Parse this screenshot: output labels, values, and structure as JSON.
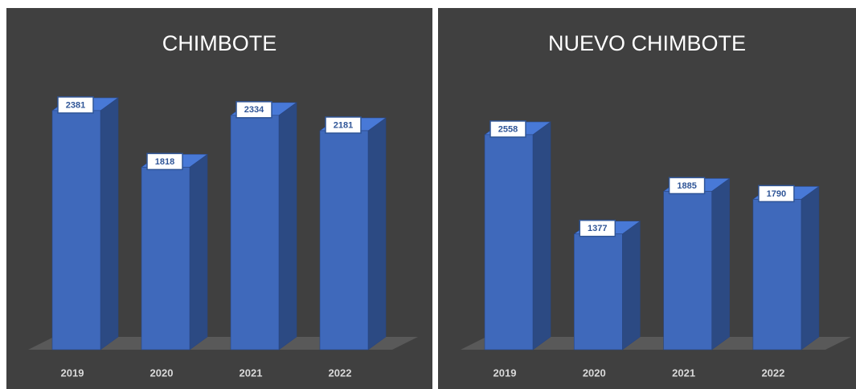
{
  "chart_data": [
    {
      "type": "bar3d",
      "title": "CHIMBOTE",
      "categories": [
        "2019",
        "2020",
        "2021",
        "2022"
      ],
      "values": [
        2381,
        1818,
        2334,
        2181
      ],
      "color": "#3f69bb"
    },
    {
      "type": "bar3d",
      "title": "NUEVO CHIMBOTE",
      "categories": [
        "2019",
        "2020",
        "2021",
        "2022"
      ],
      "values": [
        2558,
        1377,
        1885,
        1790
      ],
      "color": "#3f69bb"
    }
  ]
}
